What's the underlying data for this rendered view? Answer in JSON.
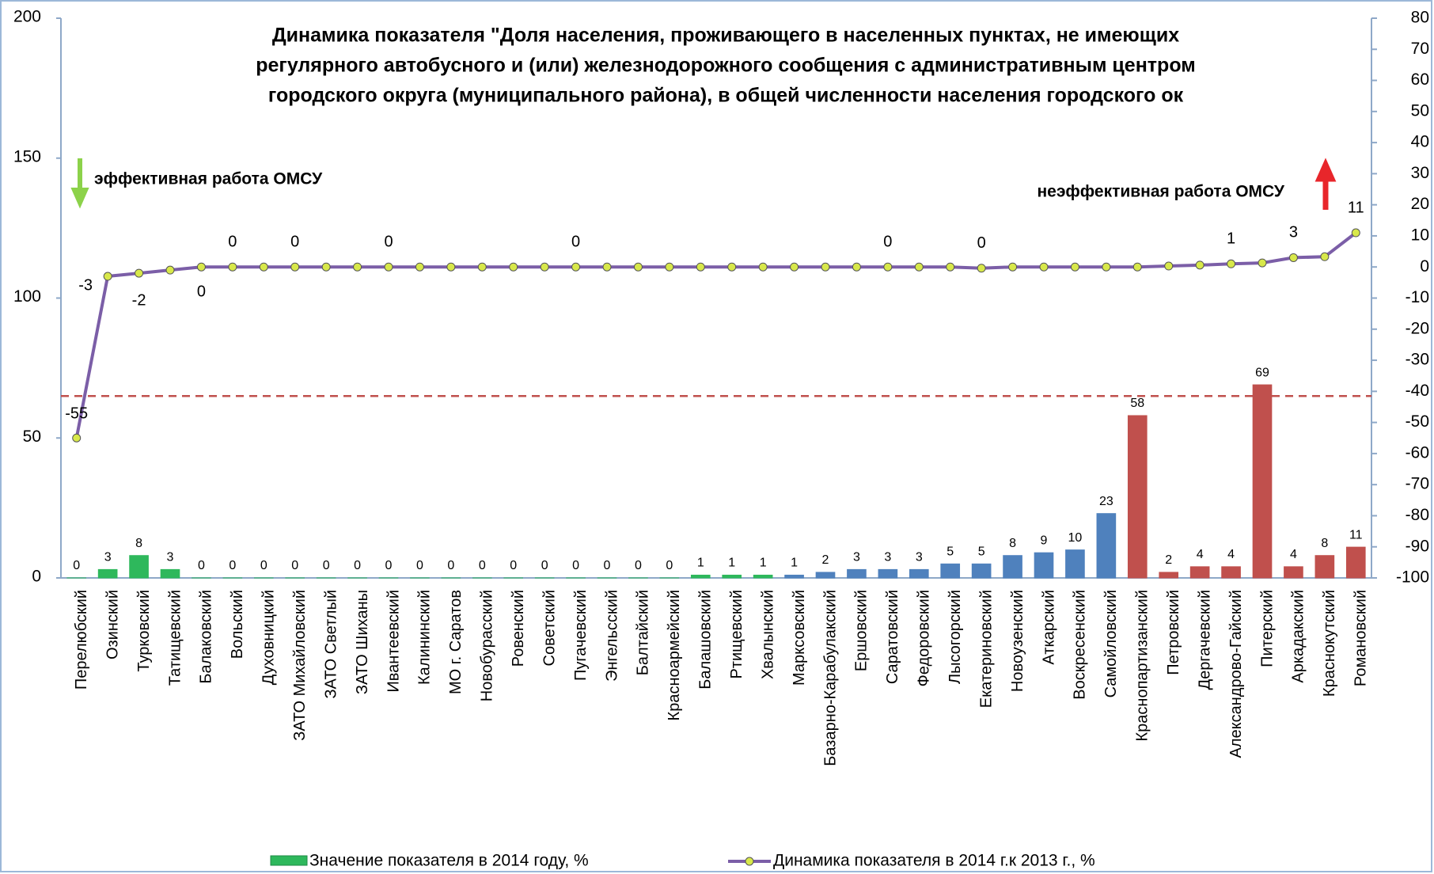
{
  "chart_data": {
    "type": "bar_line",
    "title": [
      "Динамика показателя \"Доля населения, проживающего в населенных пунктах, не имеющих",
      "регулярного автобусного и (или) железнодорожного сообщения с административным центром",
      "городского округа (муниципального района), в общей численности населения городского ок"
    ],
    "annotations": [
      {
        "text": "эффективная работа ОМСУ",
        "color": "#2eb85c"
      },
      {
        "text": "неэффективная работа ОМСУ",
        "color": "#e8262b"
      }
    ],
    "categories": [
      "Перелюбский",
      "Озинский",
      "Турковский",
      "Татищевский",
      "Балаковский",
      "Вольский",
      "Духовницкий",
      "ЗАТО Михайловский",
      "ЗАТО Светлый",
      "ЗАТО Шиханы",
      "Ивантеевский",
      "Калининский",
      "МО г. Саратов",
      "Новобурасский",
      "Ровенский",
      "Советский",
      "Пугачевский",
      "Энгельсский",
      "Балтайский",
      "Красноармейский",
      "Балашовский",
      "Ртищевский",
      "Хвалынский",
      "Марксовский",
      "Базарно-Карабулакский",
      "Ершовский",
      "Саратовский",
      "Федоровский",
      "Лысогорский",
      "Екатериновский",
      "Новоузенский",
      "Аткарский",
      "Воскресенский",
      "Самойловский",
      "Краснопартизанский",
      "Петровский",
      "Дергачевский",
      "Александрово-Гайский",
      "Питерский",
      "Аркадакский",
      "Краснокутский",
      "Романовский"
    ],
    "series": [
      {
        "name": "Значение показателя в 2014 году, %",
        "color": "#2eb85c",
        "values": [
          0,
          3,
          8,
          3,
          0,
          0,
          0,
          0,
          0,
          0,
          0,
          0,
          0,
          0,
          0,
          0,
          0,
          0,
          0,
          0,
          1,
          1,
          1,
          1,
          2,
          3,
          3,
          3,
          5,
          5,
          8,
          9,
          10,
          23,
          58,
          2,
          4,
          4,
          69,
          4,
          8,
          11
        ],
        "bar_colors": [
          "#2eb85c",
          "#2eb85c",
          "#2eb85c",
          "#2eb85c",
          "#2eb85c",
          "#2eb85c",
          "#2eb85c",
          "#2eb85c",
          "#2eb85c",
          "#2eb85c",
          "#2eb85c",
          "#2eb85c",
          "#2eb85c",
          "#2eb85c",
          "#2eb85c",
          "#2eb85c",
          "#2eb85c",
          "#2eb85c",
          "#2eb85c",
          "#2eb85c",
          "#2eb85c",
          "#2eb85c",
          "#2eb85c",
          "#4f81bd",
          "#4f81bd",
          "#4f81bd",
          "#4f81bd",
          "#4f81bd",
          "#4f81bd",
          "#4f81bd",
          "#4f81bd",
          "#4f81bd",
          "#4f81bd",
          "#4f81bd",
          "#c0504d",
          "#c0504d",
          "#c0504d",
          "#c0504d",
          "#c0504d",
          "#c0504d",
          "#c0504d",
          "#c0504d"
        ]
      },
      {
        "name": "Динамика показателя в 2014 г.к 2013 г., %",
        "color": "#7b5ea7",
        "axis": "y2",
        "marker_color": "#d8e84a",
        "values": [
          -55,
          -3,
          -2,
          -1,
          0,
          0,
          0,
          0,
          0,
          0,
          0,
          0,
          0,
          0,
          0,
          0,
          0,
          0,
          0,
          0,
          0,
          0,
          0,
          0,
          0,
          0,
          0,
          0,
          0,
          -0.4,
          0,
          0,
          0,
          0,
          0,
          0.3,
          0.6,
          1,
          1.3,
          3,
          3.3,
          11
        ],
        "value_labels": [
          "-55",
          "-3",
          "-2",
          null,
          "0",
          "0",
          null,
          "0",
          null,
          null,
          "0",
          null,
          null,
          null,
          null,
          null,
          "0",
          null,
          null,
          null,
          null,
          null,
          null,
          null,
          null,
          null,
          "0",
          null,
          null,
          "0",
          null,
          null,
          null,
          null,
          null,
          null,
          null,
          "1",
          null,
          "3",
          null,
          "11"
        ]
      }
    ],
    "ylim": [
      0,
      200
    ],
    "yticks": [
      0,
      50,
      100,
      150,
      200
    ],
    "y2lim": [
      -100,
      80
    ],
    "y2ticks": [
      -100,
      -90,
      -80,
      -70,
      -60,
      -50,
      -40,
      -30,
      -20,
      -10,
      0,
      10,
      20,
      30,
      40,
      50,
      60,
      70,
      80
    ],
    "reference_line": {
      "axis": "y",
      "value": 65,
      "color": "#c0504d"
    }
  }
}
